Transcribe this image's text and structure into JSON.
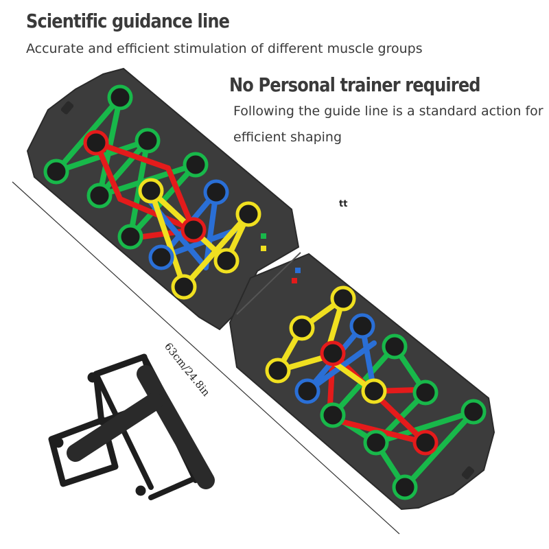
{
  "headline_1": "Scientific guidance line",
  "subline_1": "Accurate and efficient stimulation of different muscle groups",
  "headline_2": "No Personal trainer required",
  "subline_2a": "Following the guide line is a standard action for",
  "subline_2b": "efficient shaping",
  "stray_text": "tt",
  "dimension_label": "63cm/24.8in",
  "colors": {
    "board": "#3c3c3c",
    "chest": "#18b84a",
    "shoulder": "#e41b1b",
    "tricep": "#f0e020",
    "back": "#2a6fd6"
  }
}
